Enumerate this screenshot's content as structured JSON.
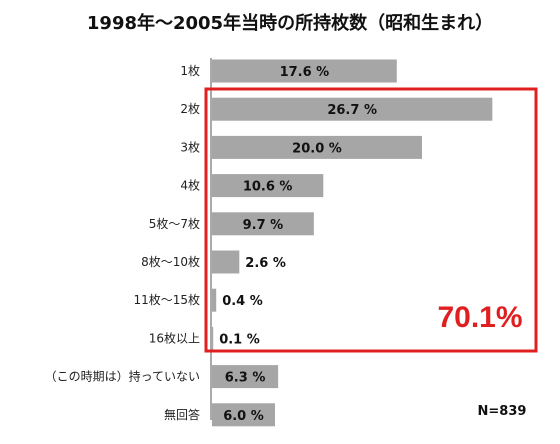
{
  "chart_data": {
    "type": "bar",
    "orientation": "horizontal",
    "title": "1998年～2005年当時の所持枚数（昭和生まれ）",
    "categories": [
      "1枚",
      "2枚",
      "3枚",
      "4枚",
      "5枚～7枚",
      "8枚～10枚",
      "11枚～15枚",
      "16枚以上",
      "（この時期は）持っていない",
      "無回答"
    ],
    "values": [
      17.6,
      26.7,
      20.0,
      10.6,
      9.7,
      2.6,
      0.4,
      0.1,
      6.3,
      6.0
    ],
    "value_labels": [
      "17.6 %",
      "26.7 %",
      "20.0 %",
      "10.6 %",
      "9.7 %",
      "2.6 %",
      "0.4 %",
      "0.1 %",
      "6.3 %",
      "6.0 %"
    ],
    "bar_color": "#a6a6a6",
    "highlight": {
      "label": "70.1%",
      "categories": [
        "2枚",
        "3枚",
        "4枚",
        "5枚～7枚",
        "8枚～10枚",
        "11枚～15枚",
        "16枚以上"
      ],
      "color": "#e02020"
    },
    "sample_size": "N=839",
    "xlim": [
      0,
      30
    ],
    "grid": false,
    "legend": "none"
  }
}
